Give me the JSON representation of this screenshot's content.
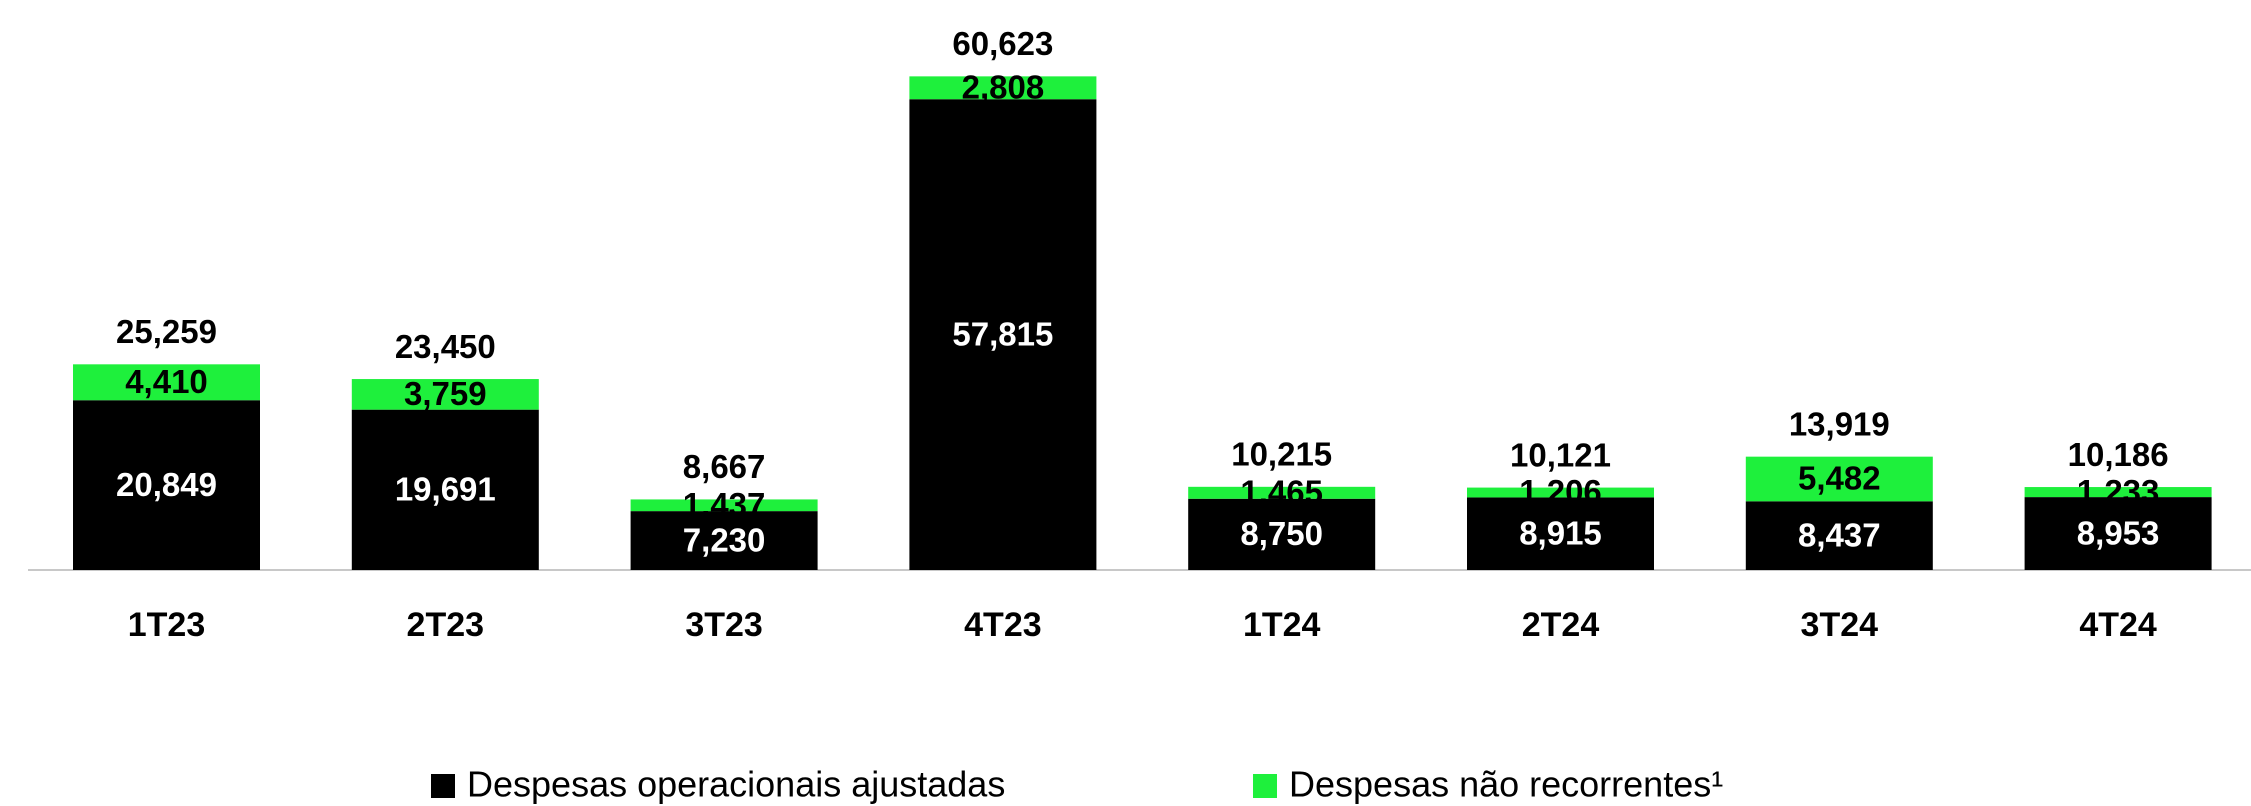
{
  "chart_data": {
    "type": "stacked_bar",
    "categories": [
      "1T23",
      "2T23",
      "3T23",
      "4T23",
      "1T24",
      "2T24",
      "3T24",
      "4T24"
    ],
    "series": [
      {
        "name": "Despesas operacionais ajustadas",
        "color": "#000000",
        "values": [
          20849,
          19691,
          7230,
          57815,
          8750,
          8915,
          8437,
          8953
        ],
        "value_labels": [
          "20,849",
          "19,691",
          "7,230",
          "57,815",
          "8,750",
          "8,915",
          "8,437",
          "8,953"
        ]
      },
      {
        "name": "Despesas não recorrentes¹",
        "color": "#1ef03c",
        "values": [
          4410,
          3759,
          1437,
          2808,
          1465,
          1206,
          5482,
          1233
        ],
        "value_labels": [
          "4,410",
          "3,759",
          "1,437",
          "2,808",
          "1,465",
          "1,206",
          "5,482",
          "1,233"
        ]
      }
    ],
    "totals": [
      25259,
      23450,
      8667,
      60623,
      10215,
      10121,
      13919,
      10186
    ],
    "total_labels": [
      "25,259",
      "23,450",
      "8,667",
      "60,623",
      "10,215",
      "10,121",
      "13,919",
      "10,186"
    ],
    "ylim": [
      0,
      70000
    ]
  }
}
